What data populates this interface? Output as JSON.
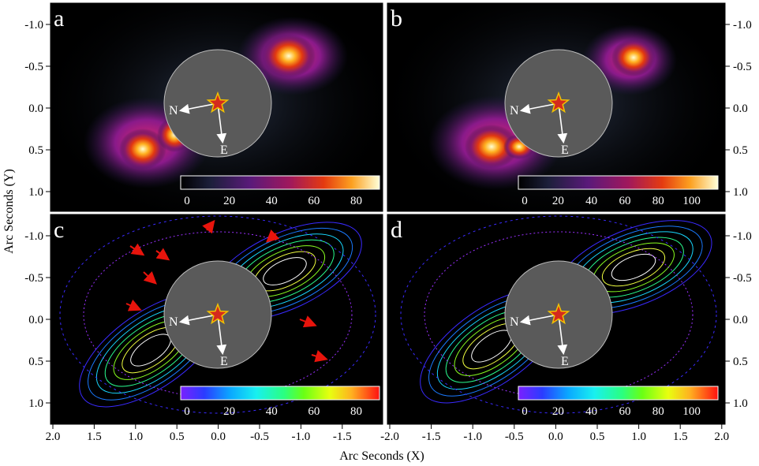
{
  "figure": {
    "x_axis_title": "Arc Seconds (X)",
    "y_axis_title": "Arc Seconds (Y)"
  },
  "axes": {
    "y_ticks": [
      "-1.0",
      "-0.5",
      "0.0",
      "0.5",
      "1.0"
    ],
    "x_ticks_left": [
      "2.0",
      "1.5",
      "1.0",
      "0.5",
      "0.0",
      "-0.5",
      "-1.0",
      "-1.5"
    ],
    "x_ticks_right": [
      "-2.0",
      "-1.5",
      "-1.0",
      "-0.5",
      "0.0",
      "0.5",
      "1.0",
      "1.5",
      "2.0"
    ]
  },
  "panels": [
    {
      "letter": "a",
      "style": "heat",
      "colorbar_ticks": [
        "0",
        "20",
        "40",
        "60",
        "80"
      ],
      "compass": [
        "N",
        "E"
      ]
    },
    {
      "letter": "b",
      "style": "heat",
      "colorbar_ticks": [
        "0",
        "20",
        "40",
        "60",
        "80",
        "100"
      ],
      "compass": [
        "N",
        "E"
      ]
    },
    {
      "letter": "c",
      "style": "contour",
      "colorbar_ticks": [
        "0",
        "20",
        "40",
        "60",
        "80"
      ],
      "compass": [
        "N",
        "E"
      ]
    },
    {
      "letter": "d",
      "style": "contour",
      "colorbar_ticks": [
        "0",
        "20",
        "40",
        "60",
        "80",
        "100"
      ],
      "compass": [
        "N",
        "E"
      ]
    }
  ],
  "colors": {
    "background": "#000000",
    "mask": "#5a5a5a",
    "star_fill": "#d42a1e",
    "star_stroke": "#f2c200",
    "arrow": "#ffffff",
    "annotation_arrow": "#e8140c"
  }
}
